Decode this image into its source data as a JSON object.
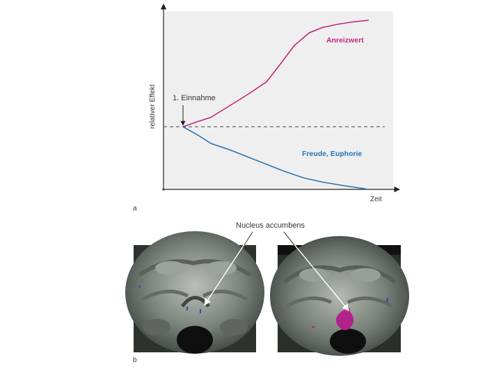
{
  "figure_a": {
    "panel_label": "a",
    "chart_data": {
      "type": "line",
      "title": "",
      "xlabel": "Zeit",
      "ylabel": "relativer Effekt",
      "baseline_annotation": "1. Einnahme",
      "xlim": [
        0,
        10
      ],
      "ylim": [
        -1,
        1
      ],
      "series": [
        {
          "name": "Anreizwert",
          "color": "#c0287a",
          "x": [
            0,
            0.8,
            1.5,
            2.5,
            3.5,
            4.5,
            5.2,
            6.0,
            6.8,
            7.5,
            8.3,
            9.0,
            10
          ],
          "y": [
            0,
            0.05,
            0.09,
            0.2,
            0.31,
            0.43,
            0.59,
            0.78,
            0.9,
            0.95,
            0.98,
            1.0,
            1.02
          ]
        },
        {
          "name": "Freude, Euphorie",
          "color": "#2a74b0",
          "x": [
            0,
            0.8,
            1.5,
            2.5,
            3.5,
            4.5,
            5.5,
            6.5,
            7.5,
            8.5,
            10
          ],
          "y": [
            0,
            -0.08,
            -0.16,
            -0.22,
            -0.29,
            -0.36,
            -0.43,
            -0.49,
            -0.53,
            -0.56,
            -0.6
          ]
        }
      ],
      "baseline": 0,
      "background": "#efefef"
    }
  },
  "figure_b": {
    "panel_label": "b",
    "annotation": "Nucleus accumbens",
    "images": [
      "mri-scan-left",
      "mri-scan-right"
    ]
  }
}
